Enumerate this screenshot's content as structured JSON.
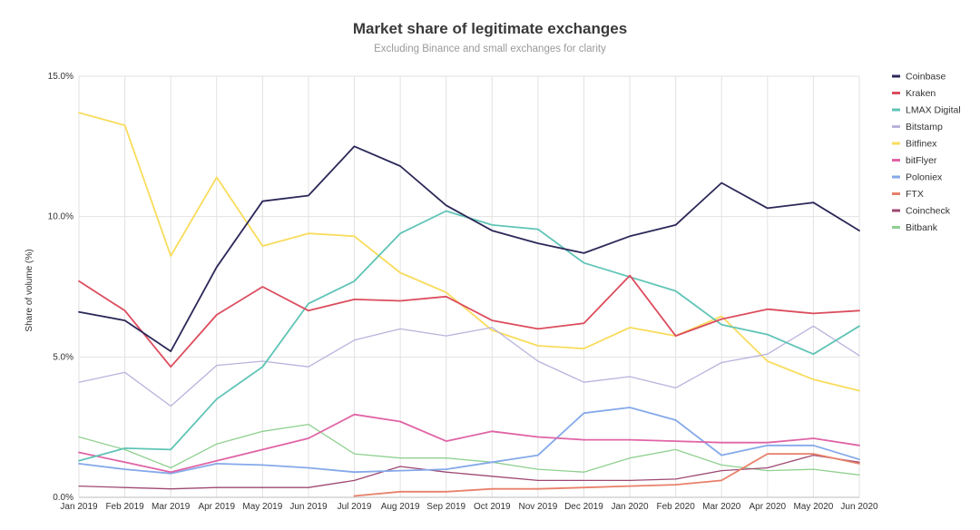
{
  "chart_data": {
    "type": "line",
    "title": "Market share of legitimate exchanges",
    "subtitle": "Excluding Binance and small exchanges for clarity",
    "ylabel": "Share of volume (%)",
    "xlabel": "",
    "ylim": [
      0,
      15
    ],
    "yticks": [
      0,
      5,
      10,
      15
    ],
    "ytick_labels": [
      "0.0%",
      "5.0%",
      "10.0%",
      "15.0%"
    ],
    "grid": true,
    "legend_position": "right",
    "categories": [
      "Jan 2019",
      "Feb 2019",
      "Mar 2019",
      "Apr 2019",
      "May 2019",
      "Jun 2019",
      "Jul 2019",
      "Aug 2019",
      "Sep 2019",
      "Oct 2019",
      "Nov 2019",
      "Dec 2019",
      "Jan 2020",
      "Feb 2020",
      "Mar 2020",
      "Apr 2020",
      "May 2020",
      "Jun 2020"
    ],
    "series": [
      {
        "name": "Coinbase",
        "color": "#2b2858",
        "values": [
          6.6,
          6.3,
          5.2,
          8.2,
          10.55,
          10.75,
          12.5,
          11.8,
          10.4,
          9.5,
          9.05,
          8.7,
          9.3,
          9.7,
          11.2,
          10.3,
          10.5,
          9.5
        ]
      },
      {
        "name": "Kraken",
        "color": "#dc4d5e",
        "values": [
          7.7,
          6.65,
          4.65,
          6.5,
          7.5,
          6.65,
          7.05,
          7.0,
          7.15,
          6.3,
          6.0,
          6.2,
          7.9,
          5.75,
          6.35,
          6.7,
          6.55,
          6.65
        ]
      },
      {
        "name": "LMAX Digital",
        "color": "#5fc4b6",
        "values": [
          1.3,
          1.75,
          1.7,
          3.5,
          4.65,
          6.9,
          7.7,
          9.4,
          10.2,
          9.7,
          9.55,
          8.35,
          7.85,
          7.35,
          6.15,
          5.8,
          5.1,
          6.1
        ]
      },
      {
        "name": "Bitstamp",
        "color": "#b9b3dd",
        "values": [
          4.1,
          4.45,
          3.25,
          4.7,
          4.85,
          4.65,
          5.6,
          6.0,
          5.75,
          6.05,
          4.85,
          4.1,
          4.3,
          3.9,
          4.8,
          5.1,
          6.1,
          5.05
        ]
      },
      {
        "name": "Bitfinex",
        "color": "#f9dc5c",
        "values": [
          13.7,
          13.25,
          8.6,
          11.4,
          8.95,
          9.4,
          9.3,
          8.0,
          7.3,
          5.95,
          5.4,
          5.3,
          6.05,
          5.75,
          6.45,
          4.85,
          4.2,
          3.8
        ]
      },
      {
        "name": "bitFlyer",
        "color": "#e064a6",
        "values": [
          1.6,
          1.25,
          0.9,
          1.3,
          1.7,
          2.1,
          2.95,
          2.7,
          2.0,
          2.35,
          2.15,
          2.05,
          2.05,
          2.0,
          1.95,
          1.95,
          2.1,
          1.85
        ]
      },
      {
        "name": "Poloniex",
        "color": "#85a9ea",
        "values": [
          1.2,
          1.0,
          0.85,
          1.2,
          1.15,
          1.05,
          0.9,
          0.95,
          1.0,
          1.25,
          1.5,
          3.0,
          3.2,
          2.75,
          1.5,
          1.85,
          1.85,
          1.35
        ]
      },
      {
        "name": "FTX",
        "color": "#e8806a",
        "values": [
          null,
          null,
          null,
          null,
          null,
          null,
          0.05,
          0.2,
          0.2,
          0.3,
          0.3,
          0.35,
          0.4,
          0.45,
          0.6,
          1.55,
          1.55,
          1.2
        ]
      },
      {
        "name": "Coincheck",
        "color": "#9e4872",
        "values": [
          0.4,
          0.35,
          0.3,
          0.35,
          0.35,
          0.35,
          0.6,
          1.1,
          0.9,
          0.75,
          0.6,
          0.6,
          0.6,
          0.65,
          0.95,
          1.05,
          1.5,
          1.25
        ]
      },
      {
        "name": "Bitbank",
        "color": "#8fd08f",
        "values": [
          2.15,
          1.7,
          1.05,
          1.9,
          2.35,
          2.6,
          1.55,
          1.4,
          1.4,
          1.25,
          1.0,
          0.9,
          1.4,
          1.7,
          1.15,
          0.95,
          1.0,
          0.8
        ]
      }
    ]
  }
}
